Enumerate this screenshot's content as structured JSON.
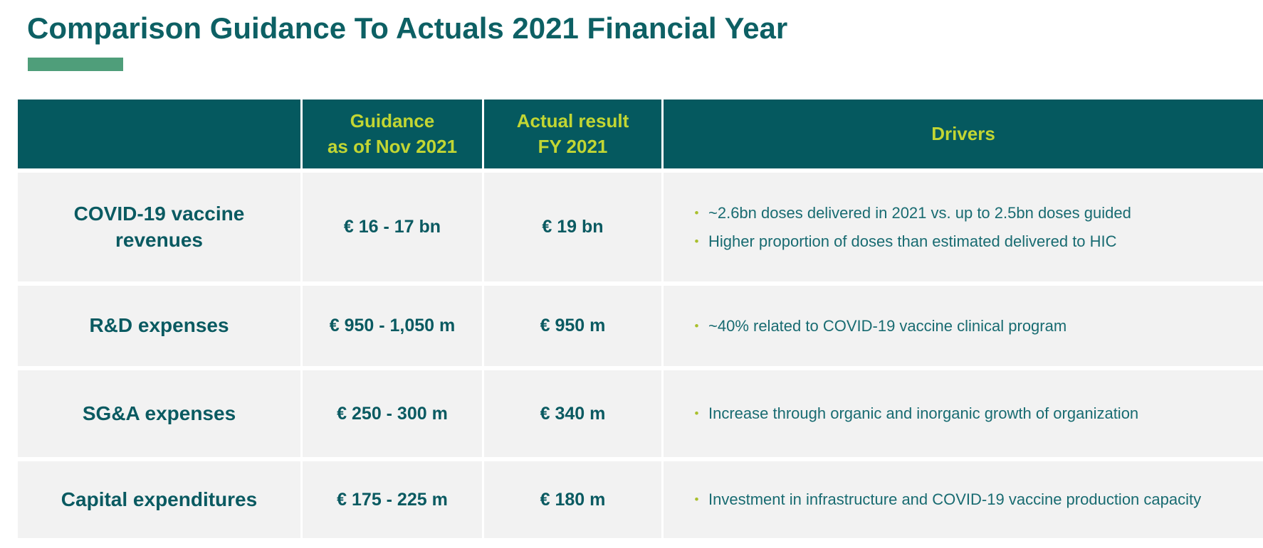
{
  "page": {
    "title": "Comparison Guidance To Actuals 2021 Financial Year"
  },
  "colors": {
    "title_text": "#0d6064",
    "accent_bar": "#4f9e7a",
    "header_bg": "#05595f",
    "header_text": "#c2d633",
    "row_bg": "#f2f2f2",
    "label_text": "#0a5a61",
    "driver_text": "#186b71",
    "bullet": "#a9bf2c"
  },
  "table": {
    "headers": {
      "metric": "",
      "guidance": "Guidance\nas of Nov 2021",
      "actual": "Actual result\nFY 2021",
      "drivers": "Drivers"
    },
    "rows": [
      {
        "label": "COVID-19 vaccine\nrevenues",
        "guidance": "€ 16 - 17 bn",
        "actual": "€ 19 bn",
        "drivers": [
          "~2.6bn doses delivered in 2021 vs. up to 2.5bn doses guided",
          "Higher proportion of doses than estimated delivered to HIC"
        ]
      },
      {
        "label": "R&D expenses",
        "guidance": "€ 950 - 1,050 m",
        "actual": "€ 950 m",
        "drivers": [
          "~40% related to COVID-19 vaccine clinical program"
        ]
      },
      {
        "label": "SG&A expenses",
        "guidance": "€ 250 - 300 m",
        "actual": "€ 340 m",
        "drivers": [
          "Increase through organic and inorganic growth of organization"
        ]
      },
      {
        "label": "Capital expenditures",
        "guidance": "€ 175 - 225 m",
        "actual": "€ 180 m",
        "drivers": [
          "Investment in infrastructure and COVID-19 vaccine production capacity"
        ]
      }
    ]
  }
}
